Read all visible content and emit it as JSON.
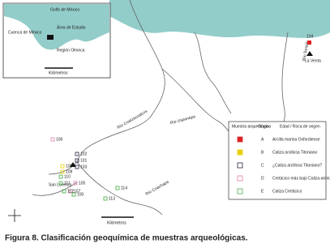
{
  "inset": {
    "labels": [
      "Golfo de México",
      "Cuenca de México",
      "Área de Estudio",
      "Región Olmeca"
    ],
    "scale": "Kilómetros"
  },
  "map": {
    "rivers": [
      "Río Coatzacoalcos",
      "Río Uspanapa",
      "Río Tonalá",
      "Río Coachapa"
    ],
    "places": [
      "La Venta",
      "San Lorenzo"
    ],
    "samples": [
      "104",
      "106",
      "102",
      "101",
      "108",
      "109",
      "103",
      "110",
      "111",
      "107",
      "112",
      "105",
      "100",
      "114",
      "113"
    ],
    "scale": "Kilómetros"
  },
  "legend": {
    "headers": [
      "Muestra arqueológica",
      "Grupo",
      "Edad / Roca de origen"
    ],
    "rows": [
      {
        "group": "A",
        "age": "Arcilla marina Oxfordiense"
      },
      {
        "group": "B",
        "age": "Caliza arcillosa Titoniano"
      },
      {
        "group": "C",
        "age": "¿Caliza arcillosa Titoniano?"
      },
      {
        "group": "D",
        "age": "Cretácico más bajo Caliza-anhidrita"
      },
      {
        "group": "E",
        "age": "Caliza Cretácico"
      }
    ]
  },
  "caption": "Figura 8.  Clasificación geoquímica de muestras arqueológicas."
}
